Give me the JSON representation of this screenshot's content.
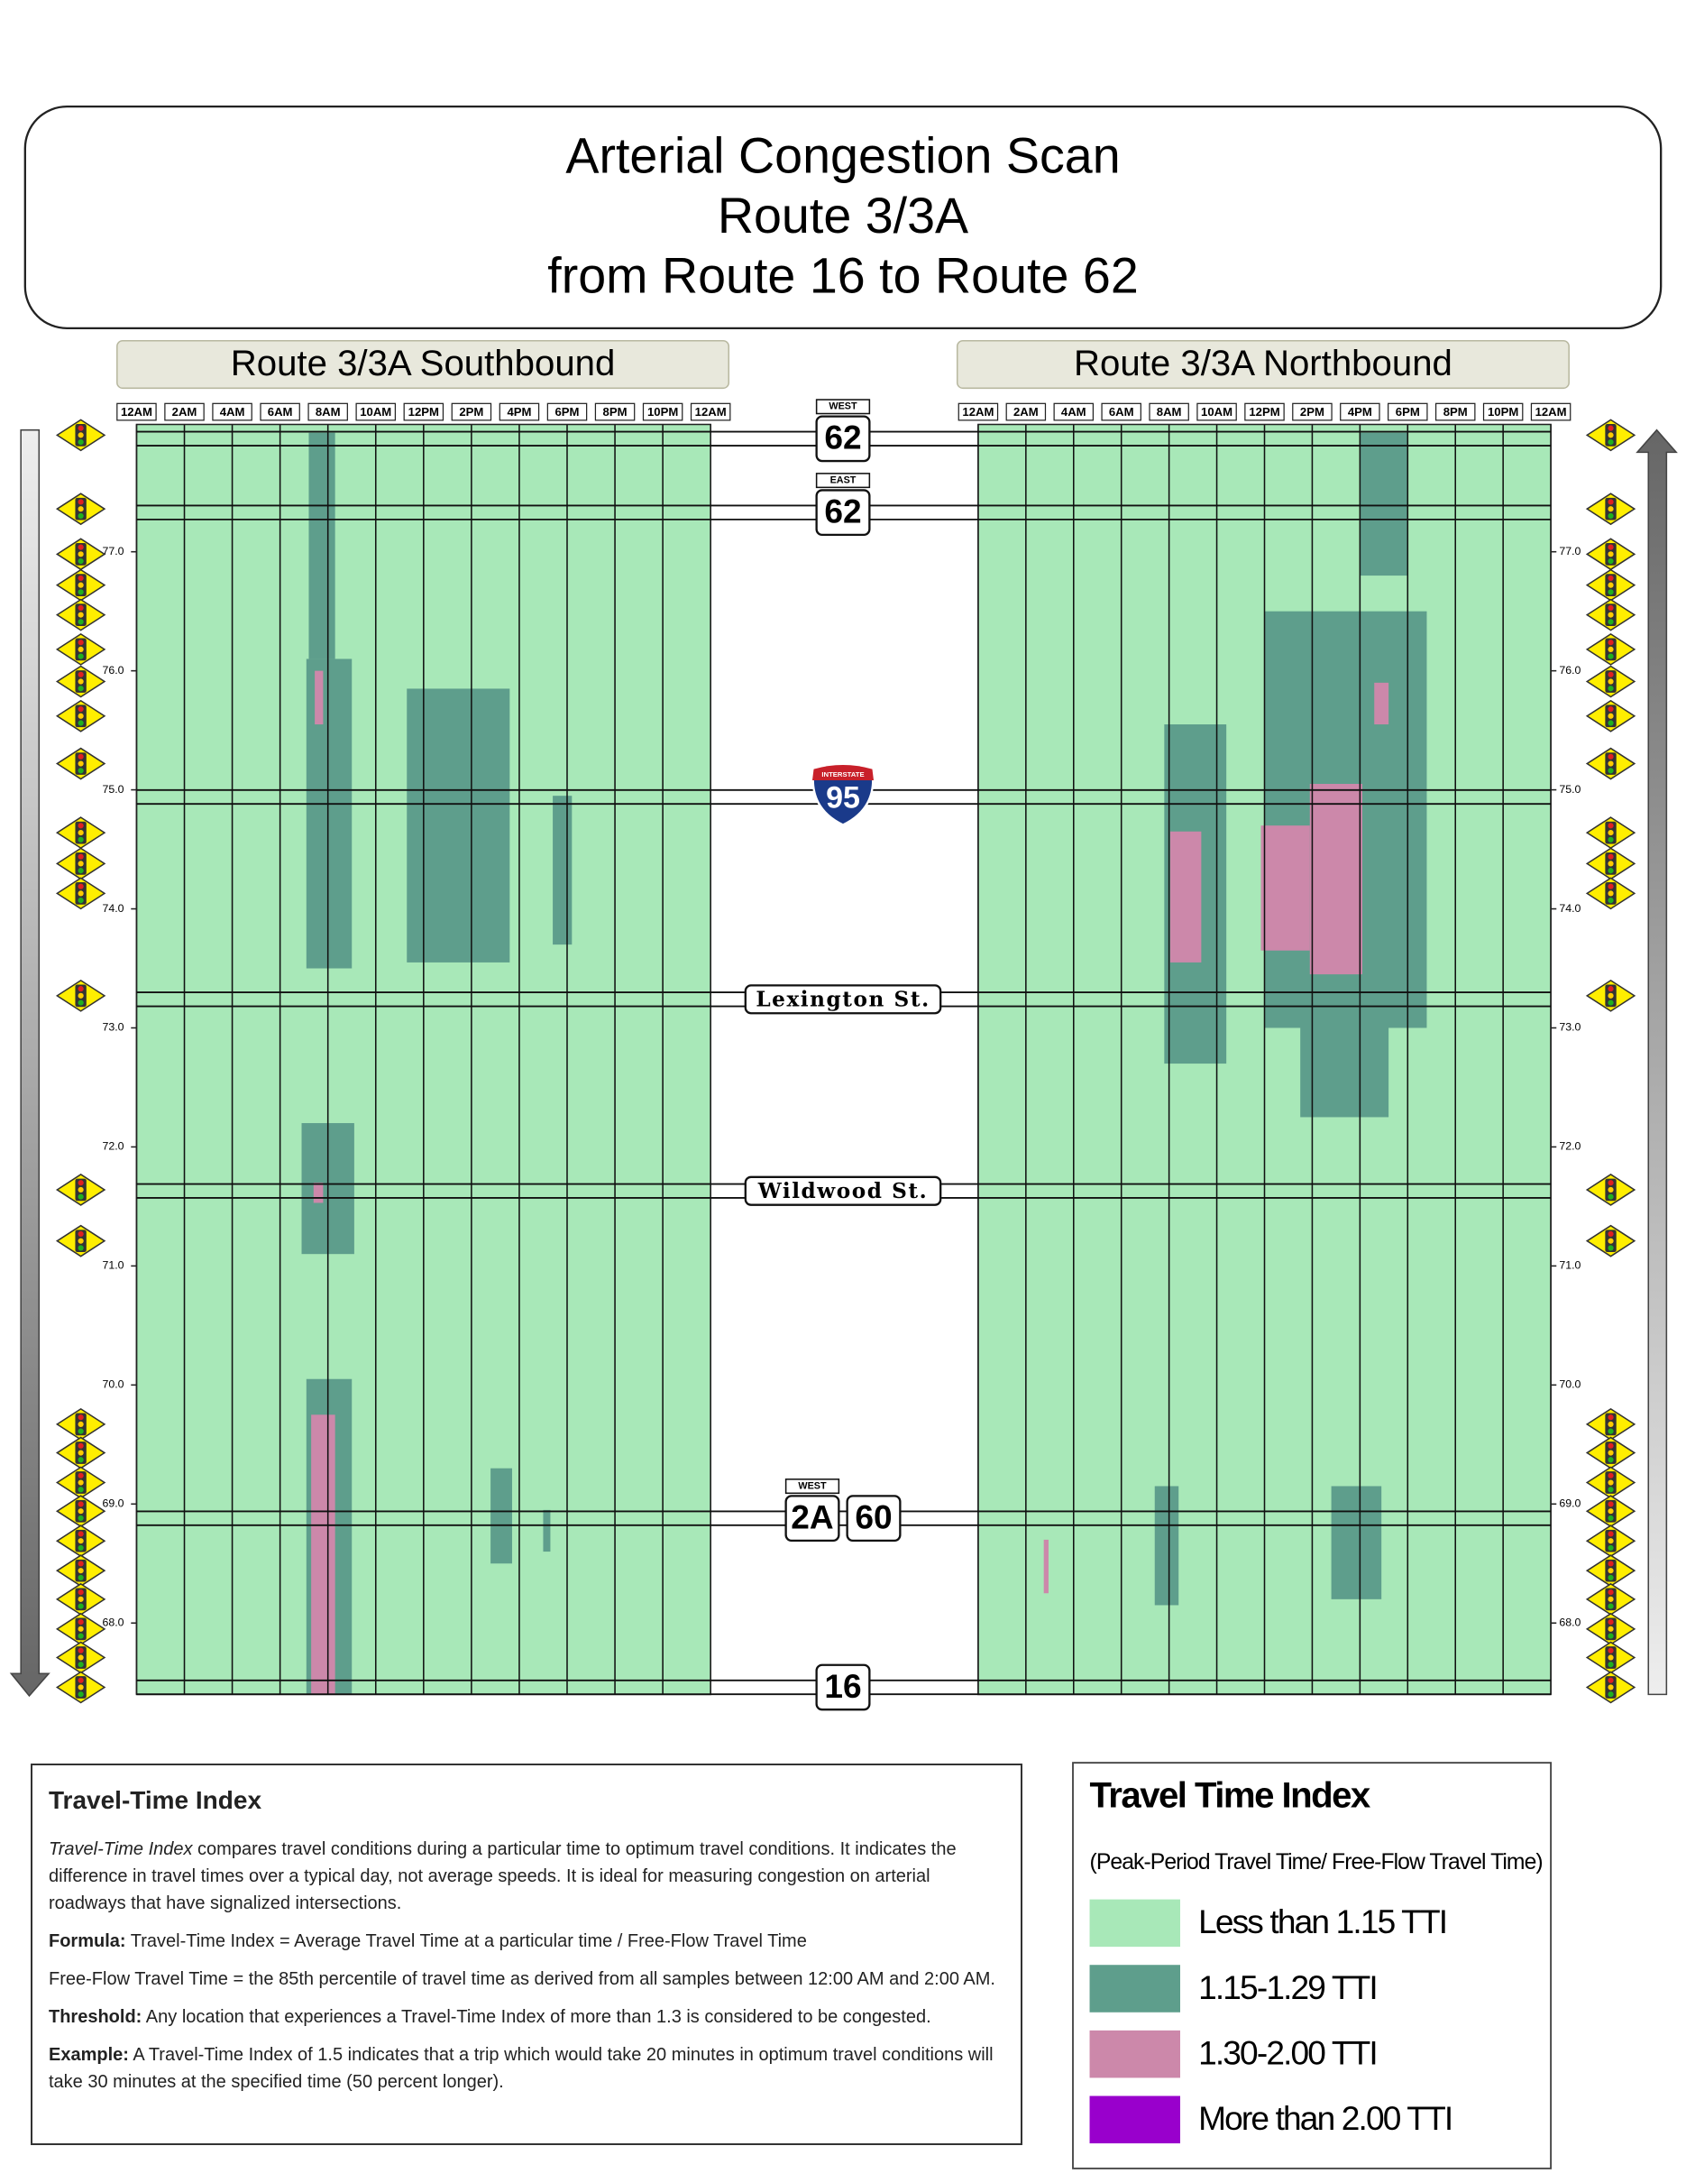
{
  "chart_data": [
    {
      "type": "heatmap",
      "title": "Route 3/3A Southbound",
      "background": "#a8e8b8",
      "xlim": [
        0,
        24
      ],
      "xticks": [
        {
          "value": 0,
          "label": "12AM"
        },
        {
          "value": 2,
          "label": "2AM"
        },
        {
          "value": 4,
          "label": "4AM"
        },
        {
          "value": 6,
          "label": "6AM"
        },
        {
          "value": 8,
          "label": "8AM"
        },
        {
          "value": 10,
          "label": "10AM"
        },
        {
          "value": 12,
          "label": "12PM"
        },
        {
          "value": 14,
          "label": "2PM"
        },
        {
          "value": 16,
          "label": "4PM"
        },
        {
          "value": 18,
          "label": "6PM"
        },
        {
          "value": 20,
          "label": "8PM"
        },
        {
          "value": 22,
          "label": "10PM"
        },
        {
          "value": 24,
          "label": "12AM"
        }
      ],
      "ylim": [
        67.4,
        78.07
      ],
      "yticks": [
        {
          "value": 68,
          "label": "68.0"
        },
        {
          "value": 69,
          "label": "69.0"
        },
        {
          "value": 70,
          "label": "70.0"
        },
        {
          "value": 71,
          "label": "71.0"
        },
        {
          "value": 72,
          "label": "72.0"
        },
        {
          "value": 73,
          "label": "73.0"
        },
        {
          "value": 74,
          "label": "74.0"
        },
        {
          "value": 75,
          "label": "75.0"
        },
        {
          "value": 76,
          "label": "76.0"
        },
        {
          "value": 77,
          "label": "77.0"
        }
      ],
      "series": [
        {
          "color": "#5e9e8c",
          "regions": [
            [
              7.2,
              8.3,
              76.1,
              78.0
            ],
            [
              7.1,
              9.0,
              73.5,
              76.1
            ],
            [
              11.3,
              15.6,
              73.55,
              75.85
            ],
            [
              17.4,
              18.2,
              73.7,
              74.95
            ],
            [
              6.9,
              9.1,
              71.1,
              72.2
            ],
            [
              7.1,
              9.0,
              67.4,
              70.05
            ],
            [
              14.8,
              15.7,
              68.5,
              69.3
            ],
            [
              17.0,
              17.3,
              68.6,
              68.95
            ]
          ]
        },
        {
          "color": "#cc88aa",
          "regions": [
            [
              7.45,
              7.8,
              75.55,
              76.0
            ],
            [
              7.4,
              7.8,
              71.53,
              71.7
            ],
            [
              7.3,
              8.3,
              67.4,
              69.75
            ]
          ]
        }
      ]
    },
    {
      "type": "heatmap",
      "title": "Route 3/3A Northbound",
      "background": "#a8e8b8",
      "xlim": [
        0,
        24
      ],
      "xticks": [
        {
          "value": 0,
          "label": "12AM"
        },
        {
          "value": 2,
          "label": "2AM"
        },
        {
          "value": 4,
          "label": "4AM"
        },
        {
          "value": 6,
          "label": "6AM"
        },
        {
          "value": 8,
          "label": "8AM"
        },
        {
          "value": 10,
          "label": "10AM"
        },
        {
          "value": 12,
          "label": "12PM"
        },
        {
          "value": 14,
          "label": "2PM"
        },
        {
          "value": 16,
          "label": "4PM"
        },
        {
          "value": 18,
          "label": "6PM"
        },
        {
          "value": 20,
          "label": "8PM"
        },
        {
          "value": 22,
          "label": "10PM"
        },
        {
          "value": 24,
          "label": "12AM"
        }
      ],
      "ylim": [
        67.4,
        78.07
      ],
      "yticks": [
        {
          "value": 68,
          "label": "68.0"
        },
        {
          "value": 69,
          "label": "69.0"
        },
        {
          "value": 70,
          "label": "70.0"
        },
        {
          "value": 71,
          "label": "71.0"
        },
        {
          "value": 72,
          "label": "72.0"
        },
        {
          "value": 73,
          "label": "73.0"
        },
        {
          "value": 74,
          "label": "74.0"
        },
        {
          "value": 75,
          "label": "75.0"
        },
        {
          "value": 76,
          "label": "76.0"
        },
        {
          "value": 77,
          "label": "77.0"
        }
      ],
      "series": [
        {
          "color": "#5e9e8c",
          "regions": [
            [
              16.0,
              18.0,
              76.8,
              78.0
            ],
            [
              12.0,
              18.8,
              73.0,
              76.5
            ],
            [
              13.5,
              17.2,
              72.25,
              73.0
            ],
            [
              7.8,
              10.4,
              72.7,
              75.55
            ],
            [
              7.4,
              8.4,
              68.15,
              69.15
            ],
            [
              14.8,
              16.9,
              68.2,
              69.15
            ]
          ]
        },
        {
          "color": "#cc88aa",
          "regions": [
            [
              8.05,
              9.35,
              73.55,
              74.65
            ],
            [
              11.85,
              13.9,
              73.65,
              74.7
            ],
            [
              13.9,
              16.1,
              73.45,
              75.05
            ],
            [
              16.6,
              17.2,
              75.55,
              75.9
            ],
            [
              2.75,
              2.95,
              68.25,
              68.7
            ]
          ]
        }
      ]
    }
  ],
  "header": {
    "lines": [
      "Arterial Congestion Scan",
      "Route 3/3A",
      "from Route 16 to Route 62"
    ]
  },
  "crossings": [
    {
      "milepost": 77.95,
      "style": "state",
      "banner": "WEST",
      "routes": [
        "62"
      ]
    },
    {
      "milepost": 77.33,
      "style": "state",
      "banner": "EAST",
      "routes": [
        "62"
      ]
    },
    {
      "milepost": 74.94,
      "style": "interstate",
      "banner": "INTERSTATE",
      "routes": [
        "95"
      ]
    },
    {
      "milepost": 73.24,
      "style": "street",
      "routes": [
        "Lexington St."
      ]
    },
    {
      "milepost": 71.63,
      "style": "street",
      "routes": [
        "Wildwood St."
      ]
    },
    {
      "milepost": 68.88,
      "style": "state",
      "banner": "WEST",
      "routes": [
        "2A",
        "60"
      ]
    },
    {
      "milepost": 67.46,
      "style": "state",
      "routes": [
        "16"
      ]
    }
  ],
  "signals": [
    77.98,
    77.36,
    76.98,
    76.72,
    76.47,
    76.18,
    75.91,
    75.62,
    75.22,
    74.64,
    74.38,
    74.13,
    73.27,
    71.64,
    71.21,
    69.67,
    69.43,
    69.18,
    68.94,
    68.69,
    68.44,
    68.2,
    67.95,
    67.71,
    67.46
  ],
  "legend": {
    "title": "Travel Time Index",
    "subtitle": "(Peak-Period Travel Time/ Free-Flow Travel Time)",
    "items": [
      {
        "label": "Less than 1.15 TTI",
        "color": "#a8e8b8"
      },
      {
        "label": "1.15-1.29 TTI",
        "color": "#5e9e8c"
      },
      {
        "label": "1.30-2.00 TTI",
        "color": "#cc88aa"
      },
      {
        "label": "More than 2.00 TTI",
        "color": "#9900cc"
      }
    ]
  },
  "info": {
    "title": "Travel-Time Index",
    "intro_term": "Travel-Time Index",
    "intro_text": " compares travel conditions during a particular time to optimum travel conditions. It indicates the difference in travel times over a typical day, not average speeds. It is ideal for measuring congestion on arterial roadways that have signalized intersections.",
    "formula_label": "Formula:",
    "formula_text": " Travel-Time Index = Average Travel Time at a particular time / Free-Flow Travel Time",
    "freeflow_text": "Free-Flow Travel Time = the 85th percentile of travel time as derived from all samples between 12:00 AM and 2:00 AM.",
    "threshold_label": "Threshold:",
    "threshold_text": " Any location that experiences a Travel-Time Index of more than 1.3 is considered to be congested.",
    "example_label": "Example:",
    "example_text": " A Travel-Time Index of 1.5 indicates that a trip which would take 20 minutes in optimum travel conditions will take 30 minutes at the specified time (50 percent longer)."
  }
}
